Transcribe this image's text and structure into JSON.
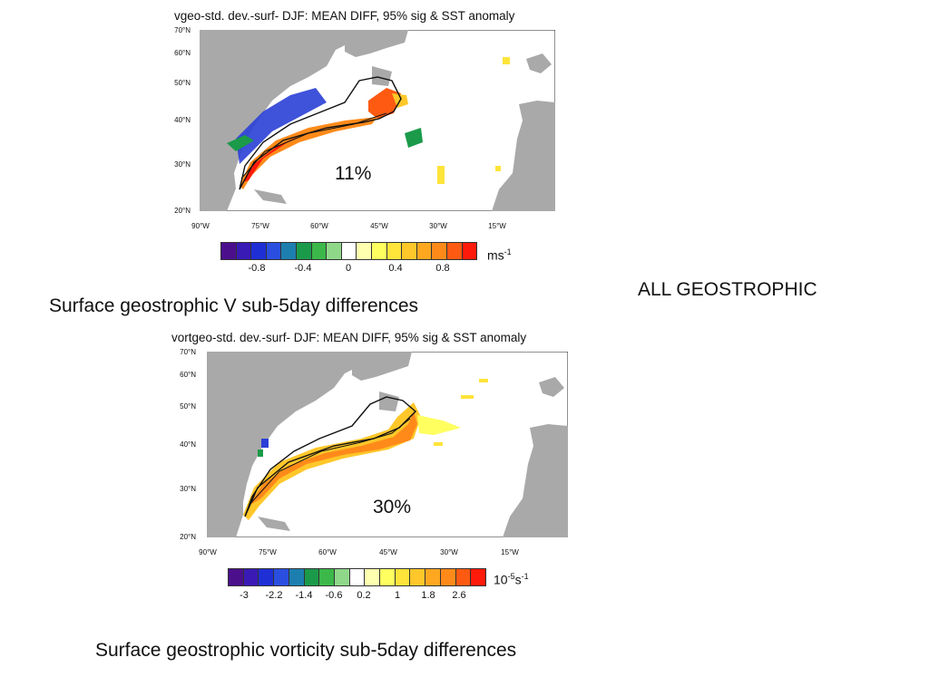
{
  "slide": {
    "label_right": "ALL GEOSTROPHIC",
    "caption_top": "Surface geostrophic V sub-5day differences",
    "caption_bottom": "Surface geostrophic vorticity  sub-5day  differences"
  },
  "map_top": {
    "title": "vgeo-std. dev.-surf- DJF: MEAN DIFF, 95% sig & SST anomaly",
    "lat_labels": [
      "70°N",
      "60°N",
      "50°N",
      "40°N",
      "30°N",
      "20°N"
    ],
    "lon_labels": [
      "90°W",
      "75°W",
      "60°W",
      "45°W",
      "30°W",
      "15°W"
    ],
    "annotation": "11%",
    "colorbar_ticks": [
      "-0.8",
      "-0.4",
      "0",
      "0.4",
      "0.8"
    ],
    "unit_base": "ms",
    "unit_exp": "-1"
  },
  "map_bottom": {
    "title": "vortgeo-std. dev.-surf- DJF: MEAN DIFF, 95% sig & SST anomaly",
    "lat_labels": [
      "70°N",
      "60°N",
      "50°N",
      "40°N",
      "30°N",
      "20°N"
    ],
    "lon_labels": [
      "90°W",
      "75°W",
      "60°W",
      "45°W",
      "30°W",
      "15°W"
    ],
    "annotation": "30%",
    "colorbar_ticks": [
      "-3",
      "-2.2",
      "-1.4",
      "-0.6",
      "0.2",
      "1",
      "1.8",
      "2.6"
    ],
    "unit_base": "10",
    "unit_exp1": "-5",
    "unit_mid": "s",
    "unit_exp2": "-1"
  },
  "colors": {
    "colorbar": [
      "#4b0f8c",
      "#3a1ab5",
      "#1f2fd6",
      "#2a4fe0",
      "#1d7fb0",
      "#1b9a4a",
      "#3cb84a",
      "#8fd88a",
      "#ffffff",
      "#ffffb0",
      "#ffff60",
      "#ffe43a",
      "#ffc72a",
      "#ffa81f",
      "#ff8a1a",
      "#ff5a12",
      "#ff1a0a"
    ],
    "land": "#a9a9a9",
    "ocean": "#ffffff"
  }
}
